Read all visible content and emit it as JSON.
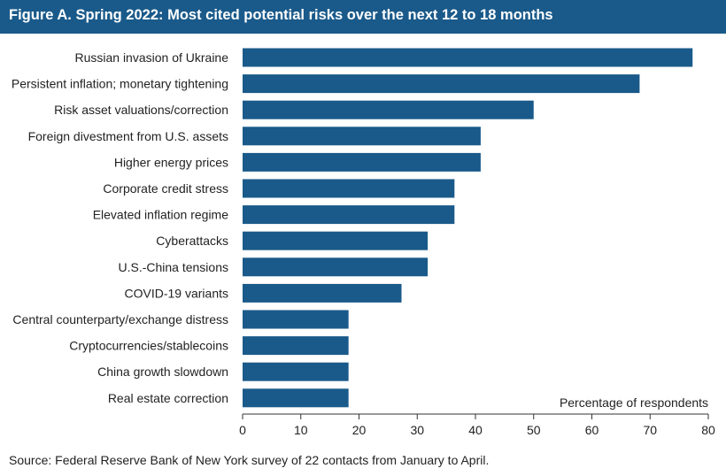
{
  "title": "Figure A. Spring 2022: Most cited potential risks over the next 12 to 18 months",
  "source": "Source: Federal Reserve Bank of New York survey of 22 contacts from January to April.",
  "colors": {
    "header_bg": "#1a5a8a",
    "bar": "#1a5a8a",
    "axis": "#333333",
    "text": "#222222"
  },
  "chart_data": {
    "type": "bar",
    "orientation": "horizontal",
    "categories": [
      "Russian invasion of Ukraine",
      "Persistent inflation; monetary tightening",
      "Risk asset valuations/correction",
      "Foreign divestment from U.S. assets",
      "Higher energy prices",
      "Corporate credit stress",
      "Elevated inflation regime",
      "Cyberattacks",
      "U.S.-China tensions",
      "COVID-19 variants",
      "Central counterparty/exchange distress",
      "Cryptocurrencies/stablecoins",
      "China growth slowdown",
      "Real estate correction"
    ],
    "values": [
      77.3,
      68.2,
      50.0,
      40.9,
      40.9,
      36.4,
      36.4,
      31.8,
      31.8,
      27.3,
      18.2,
      18.2,
      18.2,
      18.2
    ],
    "xlabel": "Percentage of respondents",
    "ylabel": "",
    "xlim": [
      0,
      80
    ],
    "xticks": [
      0,
      10,
      20,
      30,
      40,
      50,
      60,
      70,
      80
    ],
    "grid": false,
    "legend": "none"
  }
}
